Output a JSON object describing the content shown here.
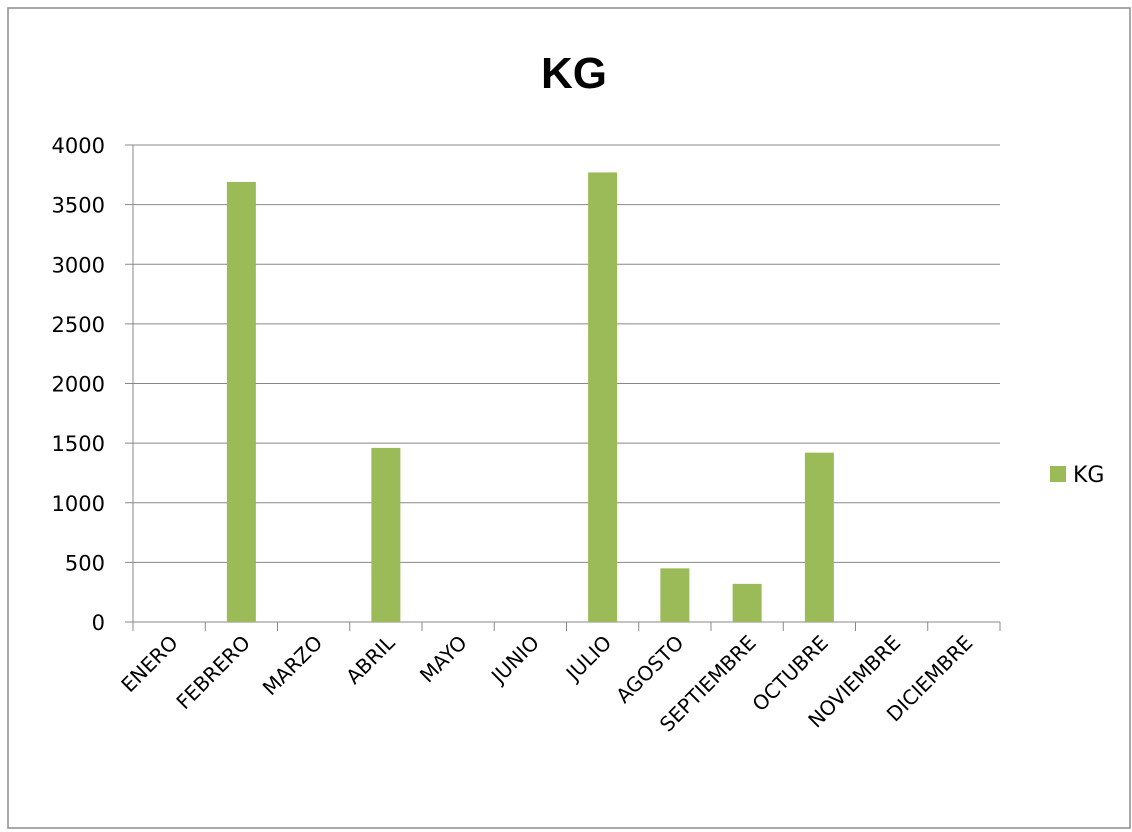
{
  "chart_data": {
    "type": "bar",
    "title": "KG",
    "xlabel": "",
    "ylabel": "",
    "categories": [
      "ENERO",
      "FEBRERO",
      "MARZO",
      "ABRIL",
      "MAYO",
      "JUNIO",
      "JULIO",
      "AGOSTO",
      "SEPTIEMBRE",
      "OCTUBRE",
      "NOVIEMBRE",
      "DICIEMBRE"
    ],
    "series": [
      {
        "name": "KG",
        "color": "#9bbb59",
        "values": [
          0,
          3690,
          0,
          1460,
          0,
          0,
          3770,
          450,
          320,
          1420,
          0,
          0
        ]
      }
    ],
    "ylim": [
      0,
      4000
    ],
    "yticks": [
      0,
      500,
      1000,
      1500,
      2000,
      2500,
      3000,
      3500,
      4000
    ],
    "grid": true,
    "legend": "right",
    "gridline_color": "#888888",
    "frame_color": "#888888"
  }
}
